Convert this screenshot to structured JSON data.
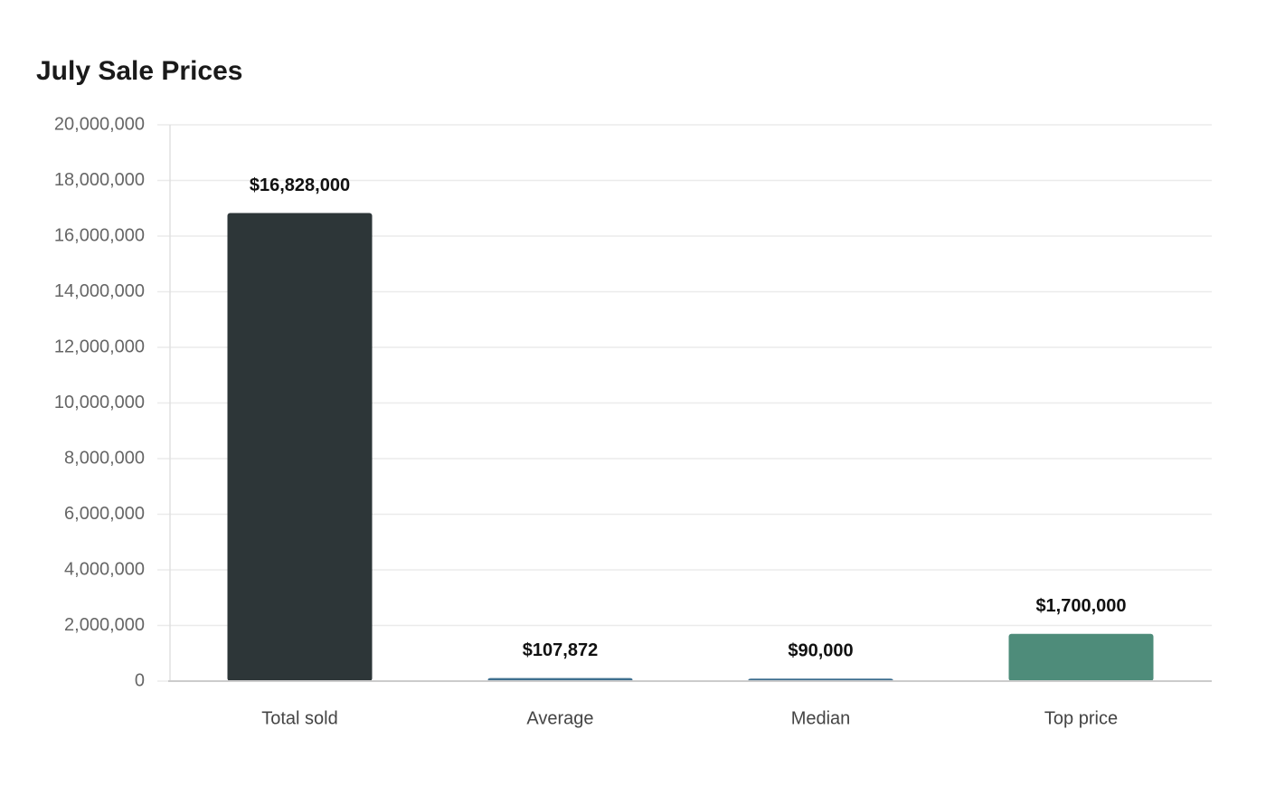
{
  "chart_data": {
    "type": "bar",
    "title": "July Sale Prices",
    "categories": [
      "Total sold",
      "Average",
      "Median",
      "Top price"
    ],
    "values": [
      16828000,
      107872,
      90000,
      1700000
    ],
    "value_labels": [
      "$16,828,000",
      "$107,872",
      "$90,000",
      "$1,700,000"
    ],
    "colors": [
      "#2d3638",
      "#3f6f8f",
      "#3f6f8f",
      "#4e8c7a"
    ],
    "ylim": [
      0,
      20000000
    ],
    "yticks": [
      0,
      {
        "value": 2000000,
        "label": "2,000,000"
      },
      {
        "value": 4000000,
        "label": "4,000,000"
      },
      {
        "value": 6000000,
        "label": "6,000,000"
      },
      {
        "value": 8000000,
        "label": "8,000,000"
      },
      {
        "value": 10000000,
        "label": "10,000,000"
      },
      {
        "value": 12000000,
        "label": "12,000,000"
      },
      {
        "value": 14000000,
        "label": "14,000,000"
      },
      {
        "value": 16000000,
        "label": "16,000,000"
      },
      {
        "value": 18000000,
        "label": "18,000,000"
      },
      {
        "value": 20000000,
        "label": "20,000,000"
      }
    ],
    "grid": true
  }
}
